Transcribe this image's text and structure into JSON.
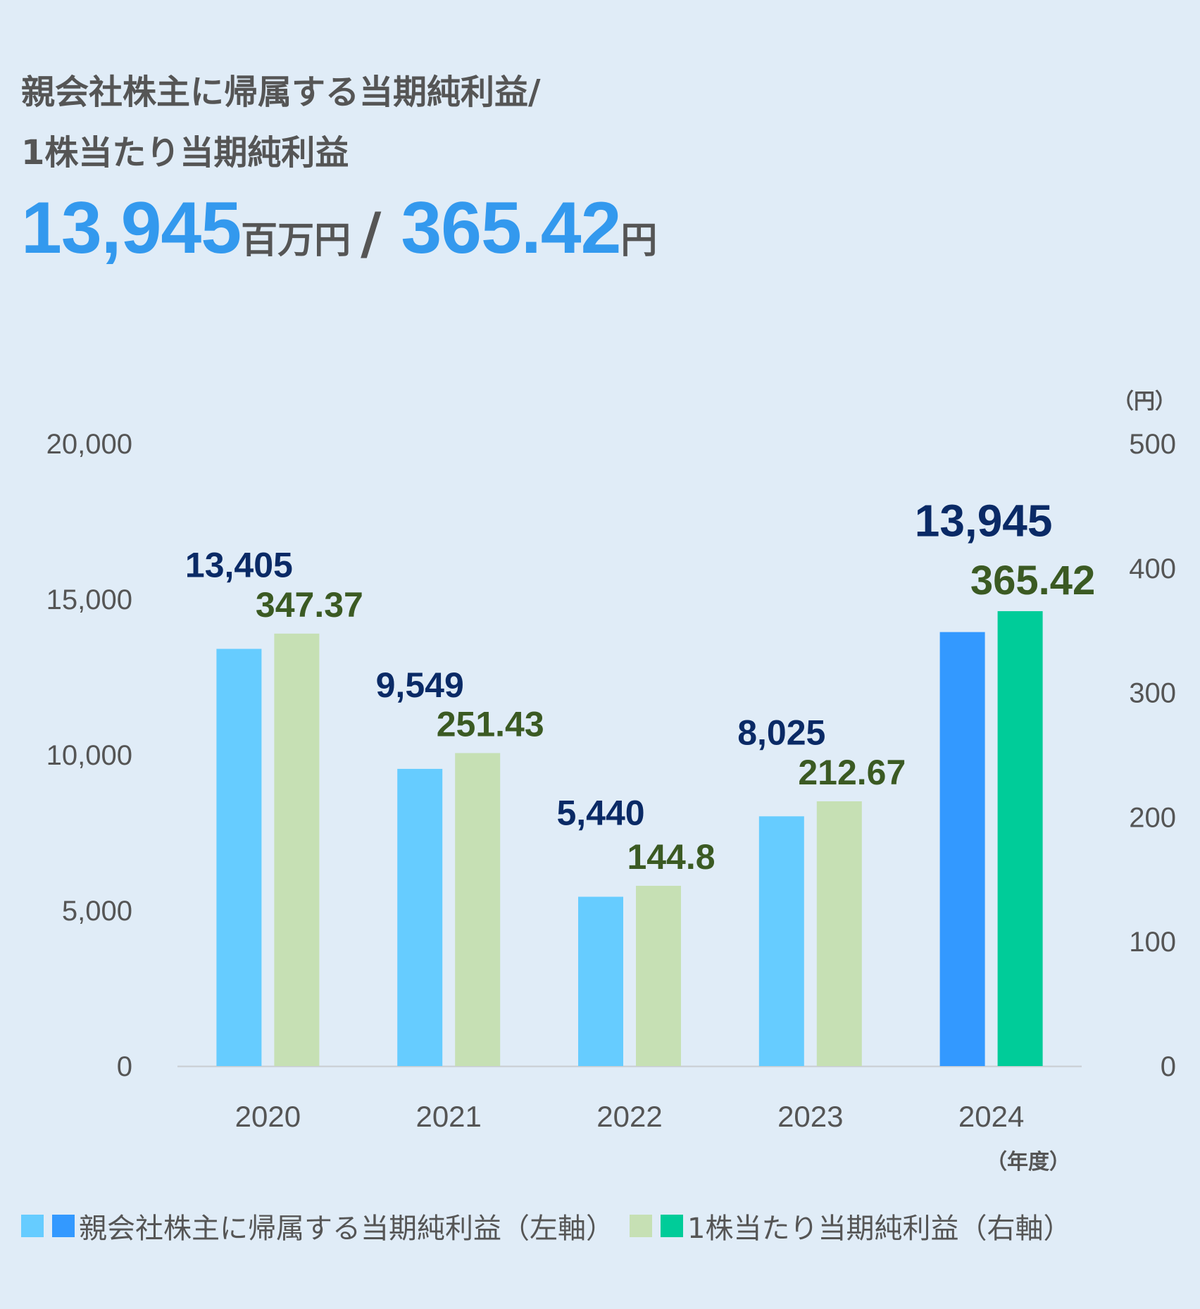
{
  "title_line1": "親会社株主に帰属する当期純利益/",
  "title_line2": "1株当たり当期純利益",
  "headline": {
    "value1": "13,945",
    "unit1": "百万円",
    "separator": "/",
    "value2": "365.42",
    "unit2": "円"
  },
  "colors": {
    "bar_left": "#66ccff",
    "bar_left_highlight": "#3399ff",
    "bar_right": "#c6e0b4",
    "bar_right_highlight": "#00cc99",
    "label_left": "#0a2a66",
    "label_right": "#3b5a23",
    "axis_text": "#555555",
    "accent": "#3399ee"
  },
  "chart_data": {
    "type": "bar",
    "categories": [
      "2020",
      "2021",
      "2022",
      "2023",
      "2024"
    ],
    "series": [
      {
        "name": "親会社株主に帰属する当期純利益（左軸）",
        "axis": "left",
        "values": [
          13405,
          9549,
          5440,
          8025,
          13945
        ],
        "labels": [
          "13,405",
          "9,549",
          "5,440",
          "8,025",
          "13,945"
        ]
      },
      {
        "name": "1株当たり当期純利益（右軸）",
        "axis": "right",
        "values": [
          347.37,
          251.43,
          144.8,
          212.67,
          365.42
        ],
        "labels": [
          "347.37",
          "251.43",
          "144.8",
          "212.67",
          "365.42"
        ]
      }
    ],
    "highlight_category": "2024",
    "y_left": {
      "lim": [
        0,
        20000
      ],
      "ticks": [
        "0",
        "5,000",
        "10,000",
        "15,000",
        "20,000"
      ]
    },
    "y_right": {
      "lim": [
        0,
        500
      ],
      "ticks": [
        "0",
        "100",
        "200",
        "300",
        "400",
        "500"
      ],
      "unit_label": "（円）"
    },
    "x_unit_label": "（年度）",
    "grid": false
  },
  "legend": {
    "left_series": "親会社株主に帰属する当期純利益（左軸）",
    "right_series": "1株当たり当期純利益（右軸）"
  }
}
